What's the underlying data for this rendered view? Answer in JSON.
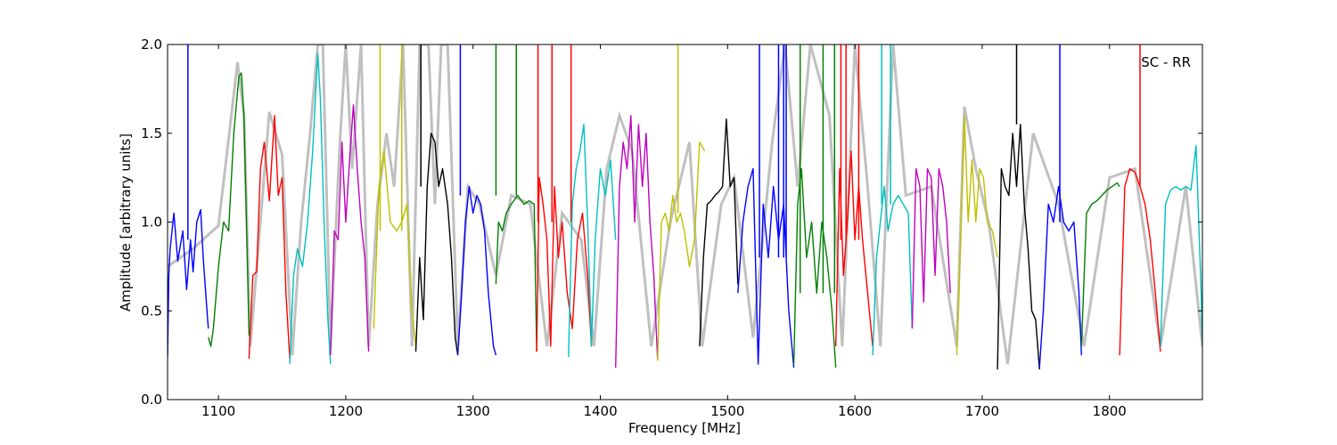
{
  "chart_data": {
    "type": "line",
    "title": "",
    "annotation": "SC - RR",
    "xlabel": "Frequency [MHz]",
    "ylabel": "Amplitude [arbitrary units]",
    "xlim": [
      1060,
      1873
    ],
    "ylim": [
      0.0,
      2.0
    ],
    "xticks": [
      1100,
      1200,
      1300,
      1400,
      1500,
      1600,
      1700,
      1800
    ],
    "yticks": [
      0.0,
      0.5,
      1.0,
      1.5,
      2.0
    ],
    "ytick_labels": [
      "0.0",
      "0.5",
      "1.0",
      "1.5",
      "2.0"
    ],
    "grid": false,
    "legend": "none",
    "background_series": {
      "color": "#c0c0c0",
      "x": [
        1060,
        1080,
        1100,
        1115,
        1120,
        1125,
        1140,
        1150,
        1158,
        1165,
        1172,
        1178,
        1182,
        1188,
        1195,
        1200,
        1205,
        1212,
        1218,
        1225,
        1232,
        1238,
        1245,
        1252,
        1258,
        1265,
        1270,
        1275,
        1280,
        1288,
        1296,
        1305,
        1318,
        1330,
        1345,
        1358,
        1370,
        1385,
        1395,
        1405,
        1415,
        1425,
        1440,
        1455,
        1470,
        1480,
        1495,
        1505,
        1520,
        1535,
        1545,
        1555,
        1565,
        1580,
        1590,
        1600,
        1610,
        1620,
        1630,
        1640,
        1660,
        1680,
        1686,
        1695,
        1705,
        1720,
        1740,
        1760,
        1780,
        1800,
        1820,
        1840,
        1860,
        1873
      ],
      "y": [
        0.75,
        0.85,
        0.98,
        1.9,
        1.6,
        0.3,
        1.62,
        1.38,
        0.25,
        1.0,
        1.5,
        2.0,
        2.0,
        0.3,
        1.4,
        2.0,
        1.3,
        2.0,
        0.3,
        1.1,
        1.5,
        1.2,
        2.0,
        0.3,
        2.0,
        2.0,
        1.1,
        2.0,
        2.0,
        0.3,
        1.2,
        1.1,
        0.7,
        1.15,
        1.1,
        0.3,
        1.05,
        0.9,
        0.3,
        1.3,
        1.6,
        1.4,
        0.3,
        1.0,
        1.45,
        0.3,
        1.1,
        1.25,
        0.35,
        1.45,
        2.0,
        1.2,
        2.0,
        1.6,
        0.3,
        2.0,
        1.2,
        0.3,
        2.0,
        1.15,
        1.2,
        0.3,
        1.65,
        1.3,
        1.0,
        0.2,
        1.5,
        1.1,
        0.3,
        1.25,
        1.3,
        0.3,
        1.2,
        0.3
      ]
    },
    "series": [
      {
        "color": "#0000ff",
        "x": [
          1060,
          1061,
          1062,
          1065,
          1068,
          1072,
          1075,
          1078,
          1080,
          1083,
          1086,
          1088,
          1090,
          1092
        ],
        "y": [
          0.24,
          0.7,
          0.85,
          1.05,
          0.78,
          0.95,
          0.62,
          0.9,
          0.72,
          1.0,
          1.07,
          0.8,
          0.6,
          0.4
        ],
        "spikes": [
          [
            1076,
            2.0
          ]
        ]
      },
      {
        "color": "#008000",
        "x": [
          1092,
          1094,
          1096,
          1100,
          1104,
          1108,
          1112,
          1116,
          1118,
          1120,
          1122,
          1124
        ],
        "y": [
          0.35,
          0.3,
          0.4,
          0.75,
          1.0,
          0.95,
          1.5,
          1.82,
          1.84,
          1.6,
          1.0,
          0.36
        ],
        "spikes": []
      },
      {
        "color": "#ff0000",
        "x": [
          1124,
          1127,
          1130,
          1133,
          1136,
          1140,
          1144,
          1147,
          1150,
          1153,
          1156
        ],
        "y": [
          0.23,
          0.7,
          0.72,
          1.3,
          1.45,
          1.12,
          1.6,
          1.15,
          1.25,
          0.6,
          0.23
        ],
        "spikes": []
      },
      {
        "color": "#00bfbf",
        "x": [
          1156,
          1159,
          1162,
          1166,
          1170,
          1174,
          1178,
          1180,
          1183,
          1186,
          1188
        ],
        "y": [
          0.2,
          0.7,
          0.85,
          0.75,
          1.0,
          1.4,
          1.95,
          1.7,
          1.0,
          0.45,
          0.2
        ],
        "spikes": []
      },
      {
        "color": "#bf00bf",
        "x": [
          1188,
          1191,
          1194,
          1197,
          1200,
          1203,
          1206,
          1209,
          1212,
          1215,
          1218
        ],
        "y": [
          0.25,
          0.95,
          0.9,
          1.45,
          1.0,
          1.35,
          1.66,
          1.3,
          1.0,
          0.8,
          0.27
        ],
        "spikes": []
      },
      {
        "color": "#bfbf00",
        "x": [
          1222,
          1226,
          1230,
          1235,
          1240,
          1244,
          1248,
          1252,
          1255
        ],
        "y": [
          0.4,
          1.2,
          1.4,
          1.0,
          0.95,
          1.0,
          1.1,
          0.5,
          0.3
        ],
        "spikes": [
          [
            1227,
            2.0
          ],
          [
            1244,
            2.0
          ]
        ]
      },
      {
        "color": "#000000",
        "x": [
          1255,
          1258,
          1261,
          1264,
          1267,
          1270,
          1273,
          1276,
          1280,
          1283,
          1286,
          1288
        ],
        "y": [
          0.27,
          0.8,
          0.45,
          1.2,
          1.5,
          1.45,
          1.2,
          1.3,
          1.1,
          0.8,
          0.35,
          0.25
        ],
        "spikes": [
          [
            1259,
            2.0
          ]
        ]
      },
      {
        "color": "#0000ff",
        "x": [
          1288,
          1291,
          1294,
          1297,
          1300,
          1303,
          1306,
          1309,
          1312,
          1316,
          1318
        ],
        "y": [
          0.25,
          0.6,
          1.0,
          1.2,
          1.05,
          1.15,
          1.1,
          0.95,
          0.6,
          0.3,
          0.25
        ],
        "spikes": [
          [
            1290,
            2.0
          ]
        ]
      },
      {
        "color": "#008000",
        "x": [
          1318,
          1320,
          1323,
          1326,
          1330,
          1335,
          1340,
          1344,
          1348,
          1350
        ],
        "y": [
          0.65,
          1.0,
          0.95,
          1.05,
          1.1,
          1.15,
          1.1,
          1.12,
          1.1,
          0.27
        ],
        "spikes": [
          [
            1318,
            2.0
          ],
          [
            1334,
            2.0
          ]
        ]
      },
      {
        "color": "#ff0000",
        "x": [
          1350,
          1352,
          1355,
          1358,
          1361,
          1364,
          1367,
          1370,
          1374,
          1378,
          1382,
          1386,
          1390,
          1393
        ],
        "y": [
          0.27,
          1.25,
          1.1,
          0.9,
          0.3,
          1.2,
          0.8,
          1.0,
          0.6,
          0.4,
          0.9,
          1.05,
          0.7,
          0.3
        ],
        "spikes": [
          [
            1351,
            2.0
          ],
          [
            1362,
            2.0
          ],
          [
            1377,
            2.0
          ]
        ]
      },
      {
        "color": "#00bfbf",
        "x": [
          1375,
          1378,
          1381,
          1384,
          1387,
          1390,
          1393,
          1396,
          1400,
          1404,
          1408,
          1412
        ],
        "y": [
          0.24,
          1.1,
          1.3,
          1.4,
          1.55,
          1.0,
          0.3,
          0.9,
          1.3,
          1.15,
          1.35,
          0.9
        ],
        "spikes": []
      },
      {
        "color": "#bf00bf",
        "x": [
          1412,
          1415,
          1418,
          1421,
          1424,
          1427,
          1430,
          1433,
          1436,
          1439,
          1442,
          1445
        ],
        "y": [
          0.18,
          1.2,
          1.45,
          1.3,
          1.6,
          1.0,
          1.55,
          1.2,
          1.5,
          1.0,
          0.7,
          0.22
        ],
        "spikes": []
      },
      {
        "color": "#bfbf00",
        "x": [
          1445,
          1448,
          1451,
          1454,
          1457,
          1460,
          1463,
          1466,
          1470,
          1474,
          1478,
          1482
        ],
        "y": [
          0.22,
          1.0,
          1.05,
          0.95,
          1.15,
          1.0,
          1.05,
          0.95,
          0.75,
          0.9,
          1.45,
          1.4
        ],
        "spikes": [
          [
            1461,
            2.0
          ]
        ]
      },
      {
        "color": "#000000",
        "x": [
          1478,
          1481,
          1484,
          1487,
          1490,
          1493,
          1496,
          1499,
          1502,
          1505,
          1508
        ],
        "y": [
          0.3,
          0.8,
          1.1,
          1.12,
          1.15,
          1.17,
          1.2,
          1.58,
          1.2,
          1.25,
          0.65
        ],
        "spikes": []
      },
      {
        "color": "#0000ff",
        "x": [
          1508,
          1512,
          1516,
          1520,
          1524,
          1528,
          1532,
          1536,
          1540,
          1544,
          1548,
          1552
        ],
        "y": [
          0.6,
          1.0,
          1.2,
          1.3,
          0.2,
          1.1,
          0.8,
          1.2,
          0.9,
          1.1,
          0.5,
          0.18
        ],
        "spikes": [
          [
            1525,
            2.0
          ],
          [
            1540,
            2.0
          ],
          [
            1544,
            2.0
          ],
          [
            1546,
            2.0
          ]
        ]
      },
      {
        "color": "#008000",
        "x": [
          1552,
          1555,
          1558,
          1562,
          1566,
          1570,
          1574,
          1578,
          1582,
          1585
        ],
        "y": [
          0.2,
          1.1,
          1.3,
          0.8,
          1.0,
          0.6,
          1.0,
          0.8,
          0.5,
          0.18
        ],
        "spikes": [
          [
            1557,
            2.0
          ],
          [
            1575,
            2.0
          ],
          [
            1584,
            2.0
          ]
        ]
      },
      {
        "color": "#ff0000",
        "x": [
          1585,
          1588,
          1591,
          1594,
          1597,
          1600,
          1603,
          1606,
          1610,
          1614
        ],
        "y": [
          0.3,
          1.3,
          0.7,
          1.0,
          1.4,
          0.9,
          1.2,
          0.9,
          0.6,
          0.3
        ],
        "spikes": [
          [
            1589,
            2.0
          ],
          [
            1593,
            2.0
          ],
          [
            1603,
            2.0
          ]
        ]
      },
      {
        "color": "#00bfbf",
        "x": [
          1614,
          1617,
          1620,
          1623,
          1626,
          1630,
          1634,
          1638,
          1642,
          1645
        ],
        "y": [
          0.25,
          0.8,
          1.0,
          1.2,
          0.95,
          1.1,
          1.15,
          1.1,
          1.05,
          0.4
        ],
        "spikes": [
          [
            1621,
            2.0
          ],
          [
            1628,
            2.0
          ]
        ]
      },
      {
        "color": "#bf00bf",
        "x": [
          1645,
          1648,
          1651,
          1654,
          1657,
          1660,
          1663,
          1666,
          1669,
          1672,
          1675
        ],
        "y": [
          0.4,
          1.3,
          1.2,
          0.55,
          1.3,
          1.25,
          0.7,
          1.3,
          1.2,
          1.0,
          0.6
        ],
        "spikes": []
      },
      {
        "color": "#bfbf00",
        "x": [
          1680,
          1683,
          1686,
          1689,
          1692,
          1695,
          1698,
          1701,
          1704,
          1708,
          1712
        ],
        "y": [
          0.25,
          0.9,
          1.6,
          1.0,
          1.35,
          1.0,
          1.3,
          1.25,
          1.0,
          0.95,
          0.8
        ],
        "spikes": []
      },
      {
        "color": "#000000",
        "x": [
          1712,
          1715,
          1718,
          1721,
          1724,
          1727,
          1730,
          1733,
          1736,
          1739,
          1742,
          1745
        ],
        "y": [
          0.17,
          1.3,
          1.2,
          1.15,
          1.5,
          1.2,
          1.55,
          1.1,
          0.85,
          0.5,
          0.45,
          0.17
        ],
        "spikes": [
          [
            1727,
            2.0
          ]
        ]
      },
      {
        "color": "#0000ff",
        "x": [
          1745,
          1748,
          1752,
          1756,
          1760,
          1764,
          1768,
          1772,
          1776,
          1778
        ],
        "y": [
          0.18,
          0.5,
          1.1,
          1.0,
          1.2,
          1.0,
          0.95,
          1.0,
          0.6,
          0.25
        ],
        "spikes": [
          [
            1761,
            2.0
          ]
        ]
      },
      {
        "color": "#008000",
        "x": [
          1778,
          1782,
          1786,
          1790,
          1794,
          1798,
          1802,
          1806,
          1808
        ],
        "y": [
          0.3,
          1.05,
          1.1,
          1.12,
          1.15,
          1.18,
          1.2,
          1.22,
          1.2
        ],
        "spikes": []
      },
      {
        "color": "#ff0000",
        "x": [
          1808,
          1812,
          1816,
          1820,
          1824,
          1828,
          1832,
          1836,
          1840
        ],
        "y": [
          0.25,
          1.2,
          1.3,
          1.28,
          1.2,
          1.1,
          0.9,
          0.6,
          0.27
        ],
        "spikes": [
          [
            1824,
            2.0
          ]
        ]
      },
      {
        "color": "#00bfbf",
        "x": [
          1840,
          1844,
          1848,
          1852,
          1856,
          1860,
          1864,
          1868,
          1872,
          1873
        ],
        "y": [
          0.3,
          1.1,
          1.18,
          1.2,
          1.18,
          1.2,
          1.18,
          1.43,
          0.6,
          0.3
        ],
        "spikes": []
      }
    ]
  }
}
